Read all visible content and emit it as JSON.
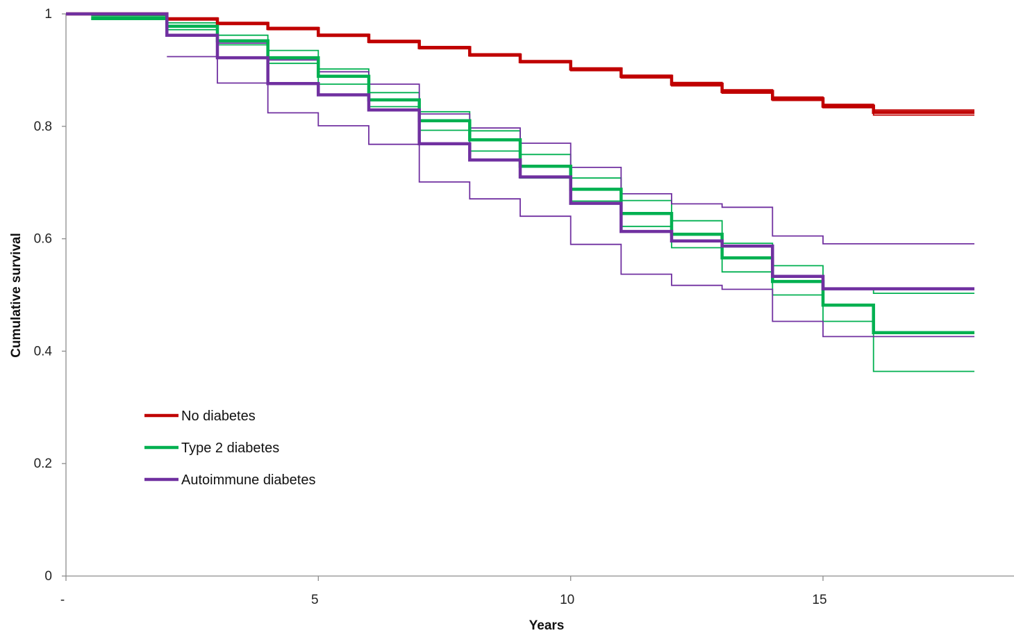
{
  "chart_data": {
    "type": "line",
    "step": true,
    "title": "",
    "xlabel": "Years",
    "ylabel": "Cumulative survival",
    "xlim": [
      -1,
      17
    ],
    "ylim": [
      0,
      1
    ],
    "x_ticks": [
      {
        "value": -1,
        "label": "-"
      },
      {
        "value": 4,
        "label": "5"
      },
      {
        "value": 9,
        "label": "10"
      },
      {
        "value": 14,
        "label": "15"
      }
    ],
    "y_ticks": [
      {
        "value": 0,
        "label": "0"
      },
      {
        "value": 0.2,
        "label": "0.2"
      },
      {
        "value": 0.4,
        "label": "0.4"
      },
      {
        "value": 0.6,
        "label": "0.6"
      },
      {
        "value": 0.8,
        "label": "0.8"
      },
      {
        "value": 1,
        "label": "1"
      }
    ],
    "grid": false,
    "legend_position": "lower-left",
    "series": [
      {
        "name": "No diabetes",
        "color": "#C00000",
        "style": "estimate",
        "x": [
          -1,
          1,
          2,
          3,
          4,
          5,
          6,
          7,
          8,
          9,
          10,
          11,
          12,
          13,
          14,
          15,
          16
        ],
        "y": [
          1.0,
          0.991,
          0.983,
          0.974,
          0.962,
          0.951,
          0.94,
          0.927,
          0.915,
          0.902,
          0.889,
          0.875,
          0.862,
          0.849,
          0.836,
          0.825,
          0.825
        ]
      },
      {
        "name": "",
        "color": "#C00000",
        "style": "ci",
        "x": [
          -1,
          1,
          2,
          3,
          4,
          5,
          6,
          7,
          8,
          9,
          10,
          11,
          12,
          13,
          14,
          15,
          16
        ],
        "y": [
          1.0,
          0.993,
          0.985,
          0.976,
          0.964,
          0.953,
          0.942,
          0.929,
          0.917,
          0.904,
          0.891,
          0.878,
          0.865,
          0.852,
          0.839,
          0.829,
          0.829
        ]
      },
      {
        "name": "",
        "color": "#C00000",
        "style": "ci",
        "x": [
          -1,
          1,
          2,
          3,
          4,
          5,
          6,
          7,
          8,
          9,
          10,
          11,
          12,
          13,
          14,
          15,
          16
        ],
        "y": [
          1.0,
          0.989,
          0.981,
          0.972,
          0.96,
          0.949,
          0.938,
          0.925,
          0.913,
          0.899,
          0.886,
          0.872,
          0.859,
          0.846,
          0.833,
          0.82,
          0.82
        ]
      },
      {
        "name": "Type 2 diabetes",
        "color": "#00B050",
        "style": "estimate",
        "x": [
          -0.5,
          1,
          2,
          3,
          4,
          5,
          6,
          7,
          8,
          9,
          10,
          11,
          12,
          13,
          14,
          15,
          16
        ],
        "y": [
          0.993,
          0.978,
          0.952,
          0.922,
          0.889,
          0.847,
          0.81,
          0.776,
          0.729,
          0.688,
          0.645,
          0.608,
          0.566,
          0.524,
          0.482,
          0.433,
          0.433
        ]
      },
      {
        "name": "",
        "color": "#00B050",
        "style": "ci",
        "x": [
          -0.5,
          1,
          2,
          3,
          4,
          5,
          6,
          7,
          8,
          9,
          10,
          11,
          12,
          13,
          14,
          15,
          16
        ],
        "y": [
          0.997,
          0.984,
          0.962,
          0.935,
          0.902,
          0.86,
          0.826,
          0.792,
          0.75,
          0.708,
          0.668,
          0.632,
          0.592,
          0.552,
          0.51,
          0.503,
          0.503
        ]
      },
      {
        "name": "",
        "color": "#00B050",
        "style": "ci",
        "x": [
          -0.5,
          1,
          2,
          3,
          4,
          5,
          6,
          7,
          8,
          9,
          10,
          11,
          12,
          13,
          14,
          15,
          16
        ],
        "y": [
          0.99,
          0.972,
          0.945,
          0.912,
          0.875,
          0.835,
          0.793,
          0.756,
          0.708,
          0.667,
          0.622,
          0.584,
          0.541,
          0.5,
          0.453,
          0.364,
          0.364
        ]
      },
      {
        "name": "Autoimmune diabetes",
        "color": "#7030A0",
        "style": "estimate",
        "x": [
          -1,
          1,
          2,
          3,
          4,
          5,
          6,
          7,
          8,
          9,
          10,
          11,
          12,
          13,
          14,
          15,
          16
        ],
        "y": [
          1.0,
          0.962,
          0.922,
          0.876,
          0.856,
          0.829,
          0.769,
          0.74,
          0.71,
          0.663,
          0.613,
          0.596,
          0.587,
          0.533,
          0.511,
          0.511,
          0.511
        ]
      },
      {
        "name": "",
        "color": "#7030A0",
        "style": "ci",
        "x": [
          1,
          2,
          3,
          4,
          5,
          6,
          7,
          8,
          9,
          10,
          11,
          12,
          13,
          14,
          15,
          16
        ],
        "y": [
          0.924,
          0.877,
          0.824,
          0.801,
          0.768,
          0.701,
          0.671,
          0.64,
          0.59,
          0.537,
          0.517,
          0.51,
          0.453,
          0.426,
          0.426,
          0.426
        ]
      },
      {
        "name": "",
        "color": "#7030A0",
        "style": "ci",
        "x": [
          2,
          3,
          4,
          5,
          6,
          7,
          8,
          9,
          10,
          11,
          12,
          13,
          14,
          15,
          16
        ],
        "y": [
          0.948,
          0.918,
          0.897,
          0.875,
          0.822,
          0.797,
          0.77,
          0.727,
          0.68,
          0.662,
          0.656,
          0.605,
          0.591,
          0.591,
          0.591
        ]
      }
    ],
    "legend": [
      {
        "label": "No diabetes",
        "color": "#C00000"
      },
      {
        "label": "Type 2 diabetes",
        "color": "#00B050"
      },
      {
        "label": "Autoimmune diabetes",
        "color": "#7030A0"
      }
    ]
  }
}
